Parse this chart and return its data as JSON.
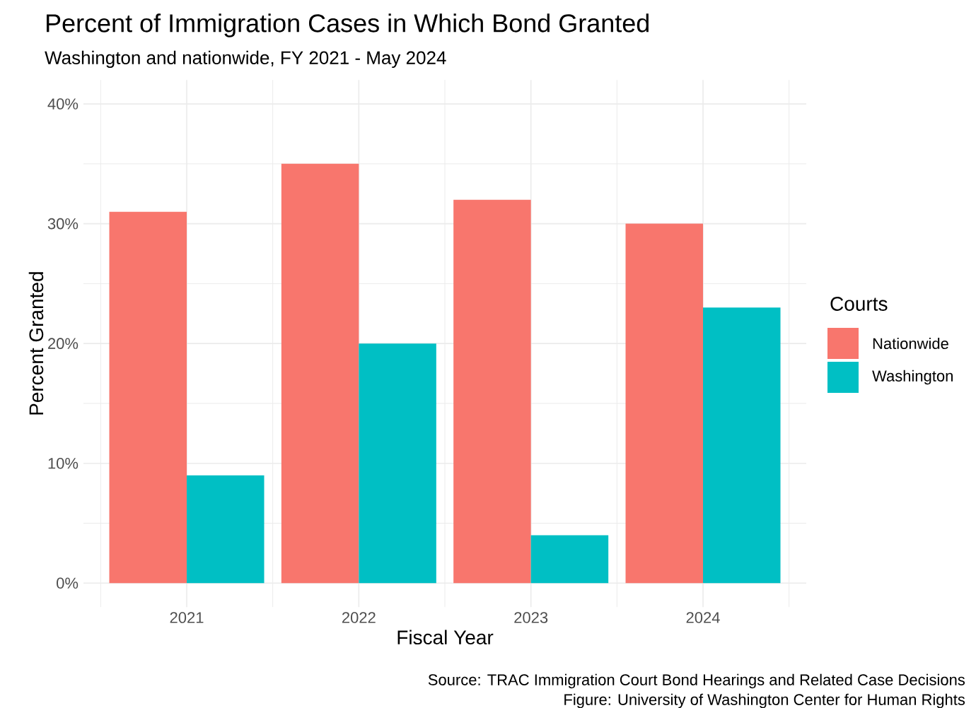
{
  "chart_data": {
    "type": "bar",
    "title": "Percent of Immigration Cases in Which Bond Granted",
    "subtitle": "Washington and nationwide, FY 2021 - May 2024",
    "xlabel": "Fiscal Year",
    "ylabel": "Percent Granted",
    "legend_title": "Courts",
    "categories": [
      "2021",
      "2022",
      "2023",
      "2024"
    ],
    "series": [
      {
        "name": "Nationwide",
        "color": "#f8766d",
        "values": [
          31,
          35,
          32,
          30
        ]
      },
      {
        "name": "Washington",
        "color": "#00bfc4",
        "values": [
          9,
          20,
          4,
          23
        ]
      }
    ],
    "ylim": [
      -2,
      42
    ],
    "yticks": [
      {
        "value": 0,
        "label": "0%"
      },
      {
        "value": 10,
        "label": "10%"
      },
      {
        "value": 20,
        "label": "20%"
      },
      {
        "value": 30,
        "label": "30%"
      },
      {
        "value": 40,
        "label": "40%"
      }
    ],
    "grid": true,
    "legend": "right",
    "annotations": [
      "Source: TRAC Immigration Court Bond Hearings and Related Case Decisions",
      "Figure: University of Washington Center for Human Rights"
    ]
  }
}
